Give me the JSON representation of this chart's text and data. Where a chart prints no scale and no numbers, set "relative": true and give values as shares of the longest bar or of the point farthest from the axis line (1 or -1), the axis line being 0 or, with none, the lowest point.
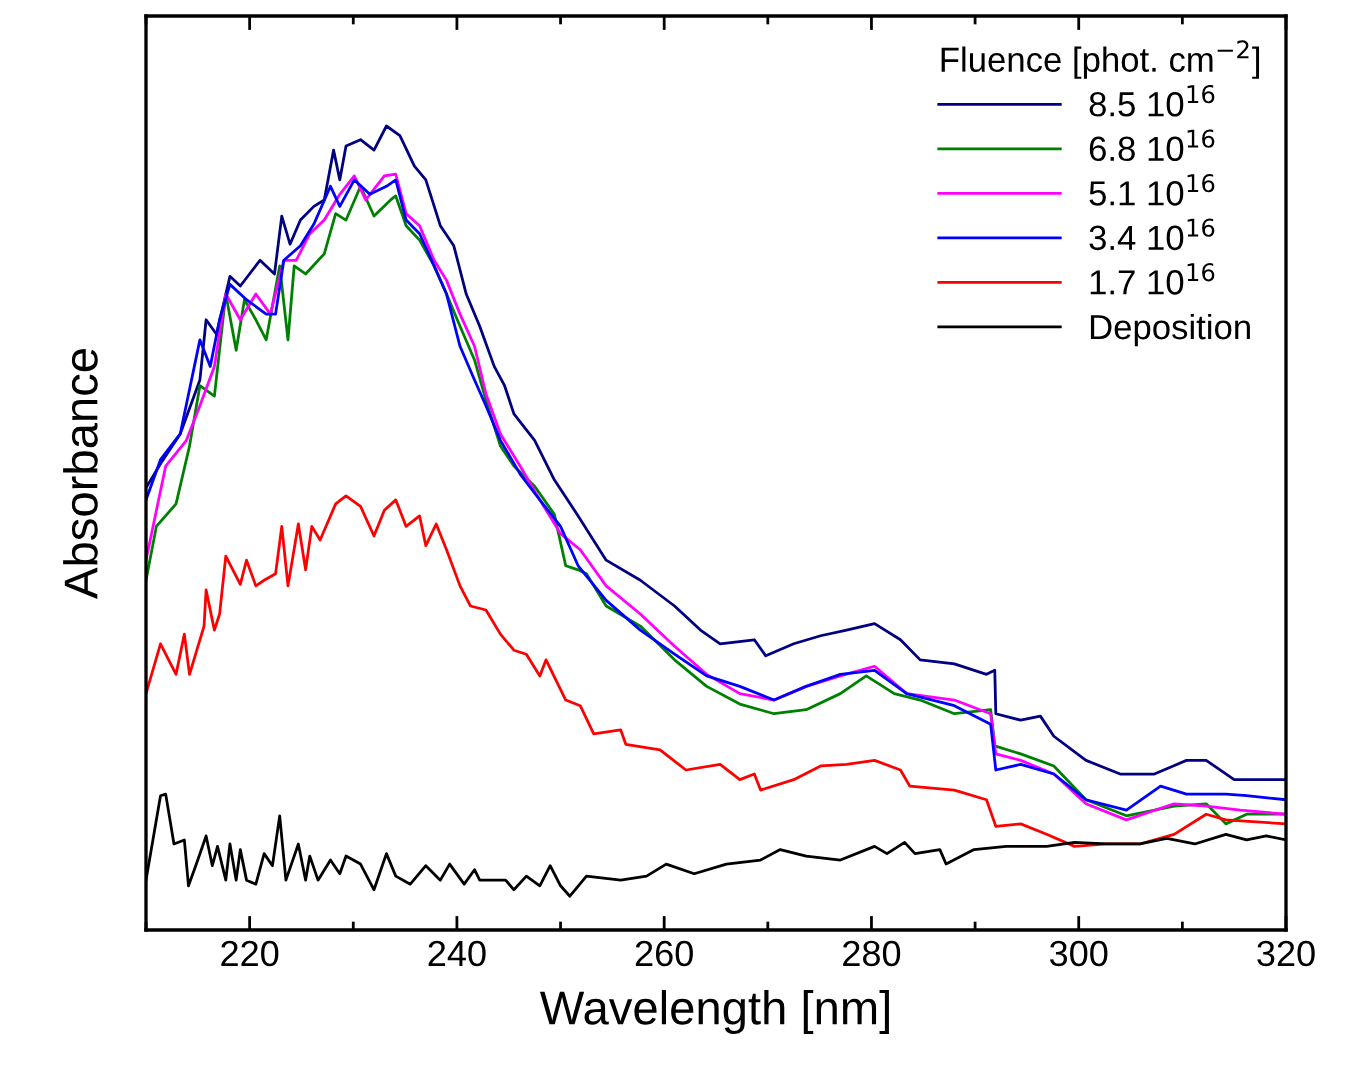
{
  "chart_data": {
    "type": "line",
    "relative": true,
    "xlabel": "Wavelength [nm]",
    "ylabel": "Absorbance",
    "legend_title": "Fluence [phot. cm$^{−2}$]",
    "legend": "top right",
    "grid": false,
    "marker": "none",
    "line_style": "solid",
    "xlim": [
      210,
      320
    ],
    "xticks": [
      {
        "value": 210,
        "label": null
      },
      220,
      {
        "value": 230,
        "label": null
      },
      240,
      {
        "value": 250,
        "label": null
      },
      260,
      {
        "value": 270,
        "label": null
      },
      280,
      {
        "value": 290,
        "label": null
      },
      300,
      {
        "value": 310,
        "label": null
      },
      320
    ],
    "series": [
      {
        "name": "8.5 10$^{16}$",
        "color": "#000080",
        "x": [
          210.1,
          211.4,
          213.3,
          215.2,
          215.8,
          216.8,
          218.1,
          219.1,
          221.0,
          222.4,
          223.1,
          223.9,
          224.9,
          226.2,
          227.2,
          228.1,
          228.7,
          229.3,
          230.7,
          232.0,
          233.2,
          234.5,
          235.9,
          237.0,
          238.4,
          239.7,
          240.9,
          242.2,
          243.6,
          244.6,
          245.5,
          247.5,
          249.4,
          251.7,
          254.4,
          257.7,
          261.0,
          263.5,
          265.4,
          268.7,
          269.8,
          272.5,
          275.1,
          277.6,
          280.3,
          282.8,
          284.7,
          288.0,
          291.1,
          291.9,
          292.0,
          294.4,
          296.3,
          297.6,
          300.7,
          304.0,
          307.3,
          310.4,
          312.3,
          315.0,
          320.0
        ],
        "values": [
          0.552,
          0.58,
          0.617,
          0.684,
          0.759,
          0.741,
          0.813,
          0.801,
          0.833,
          0.816,
          0.888,
          0.853,
          0.883,
          0.9,
          0.908,
          0.97,
          0.933,
          0.975,
          0.983,
          0.97,
          1.0,
          0.988,
          0.95,
          0.933,
          0.876,
          0.851,
          0.791,
          0.751,
          0.701,
          0.677,
          0.642,
          0.609,
          0.56,
          0.515,
          0.46,
          0.435,
          0.403,
          0.373,
          0.356,
          0.361,
          0.341,
          0.356,
          0.366,
          0.373,
          0.381,
          0.361,
          0.336,
          0.331,
          0.318,
          0.323,
          0.269,
          0.261,
          0.266,
          0.241,
          0.211,
          0.194,
          0.194,
          0.211,
          0.211,
          0.187,
          0.187
        ]
      },
      {
        "name": "6.8 10$^{16}$",
        "color": "#008000",
        "x": [
          210.0,
          211.0,
          212.9,
          214.2,
          215.2,
          216.6,
          217.7,
          218.7,
          219.5,
          220.6,
          221.6,
          222.9,
          223.7,
          224.3,
          225.4,
          227.2,
          228.3,
          229.3,
          230.7,
          232.0,
          233.6,
          234.1,
          235.1,
          236.4,
          237.8,
          239.0,
          240.3,
          241.7,
          242.8,
          244.2,
          245.5,
          247.5,
          249.4,
          250.5,
          251.7,
          252.5,
          254.4,
          257.7,
          261.0,
          264.1,
          267.3,
          270.6,
          273.7,
          277.0,
          279.5,
          282.2,
          284.7,
          288.0,
          291.5,
          291.9,
          294.4,
          297.6,
          300.7,
          304.6,
          309.2,
          312.3,
          314.2,
          316.2,
          320.0
        ],
        "values": [
          0.435,
          0.502,
          0.53,
          0.602,
          0.677,
          0.664,
          0.791,
          0.721,
          0.784,
          0.759,
          0.734,
          0.826,
          0.734,
          0.826,
          0.816,
          0.841,
          0.891,
          0.883,
          0.925,
          0.888,
          0.908,
          0.913,
          0.876,
          0.858,
          0.826,
          0.791,
          0.751,
          0.709,
          0.659,
          0.602,
          0.577,
          0.552,
          0.517,
          0.453,
          0.448,
          0.443,
          0.403,
          0.378,
          0.336,
          0.303,
          0.281,
          0.269,
          0.274,
          0.294,
          0.316,
          0.294,
          0.286,
          0.269,
          0.274,
          0.229,
          0.219,
          0.204,
          0.162,
          0.142,
          0.154,
          0.157,
          0.132,
          0.144,
          0.144
        ]
      },
      {
        "name": "5.1 10$^{16}$",
        "color": "#ff00ff",
        "x": [
          210.0,
          211.9,
          213.9,
          215.2,
          216.6,
          217.7,
          219.1,
          220.6,
          222.0,
          223.3,
          224.5,
          225.8,
          227.2,
          228.7,
          230.1,
          231.2,
          233.0,
          234.1,
          235.1,
          236.4,
          237.8,
          239.0,
          240.3,
          241.7,
          242.8,
          244.2,
          246.1,
          248.0,
          250.0,
          251.9,
          254.4,
          257.7,
          261.0,
          264.1,
          267.3,
          270.6,
          273.7,
          277.0,
          280.3,
          283.4,
          288.0,
          291.5,
          292.0,
          294.4,
          297.6,
          300.7,
          304.6,
          309.2,
          312.3,
          315.6,
          320.0
        ],
        "values": [
          0.46,
          0.577,
          0.609,
          0.652,
          0.701,
          0.791,
          0.759,
          0.791,
          0.766,
          0.833,
          0.833,
          0.866,
          0.883,
          0.915,
          0.938,
          0.908,
          0.938,
          0.94,
          0.891,
          0.876,
          0.833,
          0.808,
          0.766,
          0.726,
          0.667,
          0.617,
          0.577,
          0.535,
          0.493,
          0.473,
          0.428,
          0.393,
          0.353,
          0.318,
          0.294,
          0.286,
          0.303,
          0.316,
          0.328,
          0.294,
          0.286,
          0.269,
          0.219,
          0.211,
          0.194,
          0.157,
          0.137,
          0.157,
          0.154,
          0.149,
          0.144
        ]
      },
      {
        "name": "3.4 10$^{16}$",
        "color": "#0000ff",
        "x": [
          210.0,
          211.4,
          213.3,
          215.2,
          216.2,
          217.1,
          218.1,
          219.7,
          221.6,
          222.5,
          223.3,
          224.9,
          226.2,
          227.8,
          228.7,
          230.1,
          231.6,
          233.2,
          234.1,
          235.1,
          236.4,
          237.8,
          239.0,
          240.3,
          241.7,
          242.8,
          244.2,
          246.1,
          248.0,
          250.0,
          251.7,
          254.4,
          257.7,
          261.0,
          264.1,
          267.3,
          270.6,
          273.7,
          277.0,
          280.3,
          283.4,
          288.0,
          291.5,
          292.0,
          294.4,
          297.6,
          300.7,
          304.6,
          307.9,
          310.4,
          314.2,
          316.2,
          320.0
        ],
        "values": [
          0.535,
          0.585,
          0.617,
          0.734,
          0.701,
          0.759,
          0.803,
          0.784,
          0.766,
          0.766,
          0.833,
          0.851,
          0.878,
          0.925,
          0.9,
          0.933,
          0.915,
          0.925,
          0.933,
          0.883,
          0.866,
          0.826,
          0.791,
          0.726,
          0.684,
          0.652,
          0.609,
          0.567,
          0.535,
          0.502,
          0.453,
          0.41,
          0.373,
          0.343,
          0.316,
          0.303,
          0.286,
          0.303,
          0.318,
          0.323,
          0.294,
          0.279,
          0.256,
          0.199,
          0.206,
          0.194,
          0.162,
          0.149,
          0.179,
          0.169,
          0.169,
          0.167,
          0.162
        ]
      },
      {
        "name": "1.7 10$^{16}$",
        "color": "#ff0000",
        "x": [
          210.0,
          211.4,
          212.9,
          213.7,
          214.2,
          215.6,
          215.8,
          216.6,
          217.1,
          217.7,
          219.1,
          219.7,
          220.6,
          221.4,
          222.5,
          223.1,
          223.7,
          224.7,
          225.4,
          226.0,
          226.8,
          228.3,
          229.3,
          230.7,
          232.0,
          233.0,
          234.1,
          235.1,
          236.4,
          237.0,
          238.0,
          239.0,
          240.3,
          241.3,
          242.8,
          244.2,
          245.5,
          246.7,
          248.0,
          248.6,
          250.5,
          251.9,
          253.2,
          255.8,
          256.3,
          259.6,
          262.1,
          265.4,
          267.3,
          268.7,
          269.3,
          272.5,
          275.1,
          277.6,
          280.3,
          282.8,
          283.7,
          288.0,
          291.1,
          292.0,
          294.4,
          296.9,
          299.6,
          302.7,
          305.9,
          309.2,
          312.3,
          314.2,
          320.0
        ],
        "values": [
          0.294,
          0.356,
          0.318,
          0.368,
          0.318,
          0.378,
          0.423,
          0.373,
          0.393,
          0.465,
          0.43,
          0.46,
          0.428,
          0.435,
          0.443,
          0.502,
          0.428,
          0.505,
          0.448,
          0.502,
          0.485,
          0.53,
          0.54,
          0.527,
          0.49,
          0.522,
          0.535,
          0.502,
          0.515,
          0.478,
          0.505,
          0.473,
          0.428,
          0.403,
          0.398,
          0.368,
          0.348,
          0.343,
          0.316,
          0.336,
          0.286,
          0.279,
          0.244,
          0.249,
          0.231,
          0.224,
          0.199,
          0.206,
          0.187,
          0.194,
          0.174,
          0.187,
          0.204,
          0.206,
          0.211,
          0.199,
          0.179,
          0.174,
          0.162,
          0.129,
          0.132,
          0.119,
          0.104,
          0.107,
          0.107,
          0.119,
          0.144,
          0.137,
          0.132
        ]
      },
      {
        "name": "Deposition",
        "color": "#000000",
        "x": [
          210.0,
          211.4,
          211.9,
          212.7,
          213.7,
          214.1,
          214.8,
          215.8,
          216.4,
          216.9,
          217.7,
          218.1,
          218.7,
          219.1,
          219.7,
          220.6,
          221.4,
          222.2,
          222.9,
          223.5,
          224.7,
          225.4,
          225.8,
          226.6,
          227.8,
          228.7,
          229.3,
          230.7,
          232.0,
          233.2,
          234.1,
          235.5,
          237.0,
          238.4,
          239.3,
          240.7,
          241.7,
          242.2,
          244.7,
          245.5,
          246.7,
          248.0,
          249.0,
          250.0,
          250.9,
          252.5,
          255.8,
          258.3,
          260.2,
          262.9,
          266.0,
          269.3,
          271.2,
          273.7,
          277.0,
          280.3,
          281.5,
          283.2,
          284.2,
          286.6,
          287.2,
          289.9,
          293.0,
          296.9,
          299.6,
          302.7,
          305.9,
          308.5,
          311.2,
          314.2,
          316.2,
          318.1,
          320.0
        ],
        "values": [
          0.062,
          0.167,
          0.169,
          0.107,
          0.112,
          0.055,
          0.08,
          0.117,
          0.08,
          0.104,
          0.062,
          0.107,
          0.062,
          0.1,
          0.062,
          0.057,
          0.095,
          0.08,
          0.142,
          0.062,
          0.107,
          0.062,
          0.092,
          0.062,
          0.087,
          0.07,
          0.092,
          0.082,
          0.05,
          0.095,
          0.067,
          0.057,
          0.08,
          0.062,
          0.082,
          0.057,
          0.075,
          0.062,
          0.062,
          0.05,
          0.067,
          0.055,
          0.08,
          0.055,
          0.042,
          0.067,
          0.062,
          0.067,
          0.082,
          0.07,
          0.082,
          0.087,
          0.1,
          0.092,
          0.087,
          0.104,
          0.095,
          0.109,
          0.095,
          0.1,
          0.082,
          0.1,
          0.104,
          0.104,
          0.109,
          0.107,
          0.107,
          0.114,
          0.107,
          0.119,
          0.112,
          0.117,
          0.112
        ]
      }
    ]
  }
}
